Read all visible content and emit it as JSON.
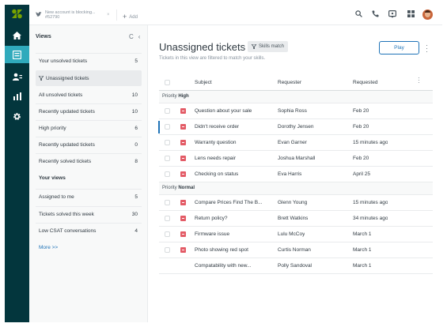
{
  "topbar": {
    "tab": {
      "title": "New account is blocking...",
      "ticket_id": "#52790",
      "close": "×"
    },
    "add_label": "Add"
  },
  "views_panel": {
    "heading": "Views",
    "refresh": "C",
    "collapse": "‹",
    "items": [
      {
        "label": "Your unsolved tickets",
        "count": "5"
      },
      {
        "label": "Unassigned tickets",
        "count": ""
      },
      {
        "label": "All unsolved tickets",
        "count": "10"
      },
      {
        "label": "Recently updated tickets",
        "count": "10"
      },
      {
        "label": "High priority",
        "count": "6"
      },
      {
        "label": "Recently updated tickets",
        "count": "0"
      },
      {
        "label": "Recently solved tickets",
        "count": "8"
      }
    ],
    "your_views_heading": "Your views",
    "your_views": [
      {
        "label": "Assigned to me",
        "count": "5"
      },
      {
        "label": "Tickets solved this week",
        "count": "30"
      },
      {
        "label": "Low CSAT conversations",
        "count": "4"
      }
    ],
    "more_label": "More >>"
  },
  "main": {
    "title": "Unassigned tickets",
    "skills_badge": "Skills match",
    "subtitle": "Tickets in this view are filtered to match your skills.",
    "play_label": "Play",
    "columns": [
      "Subject",
      "Requester",
      "Requested"
    ],
    "groups": [
      {
        "prefix": "Priority",
        "name": "High",
        "rows": [
          {
            "subject": "Question about your sale",
            "requester": "Sophia Ross",
            "requested": "Feb 20"
          },
          {
            "subject": "Didn't receive order",
            "requester": "Dorothy Jensen",
            "requested": "Feb 20"
          },
          {
            "subject": "Warranty question",
            "requester": "Evan Garner",
            "requested": "15 minutes ago"
          },
          {
            "subject": "Lens needs repair",
            "requester": "Joshua Marshall",
            "requested": "Feb 20"
          },
          {
            "subject": "Checking on status",
            "requester": "Eva Harris",
            "requested": "April 25"
          }
        ]
      },
      {
        "prefix": "Priority",
        "name": "Normal",
        "rows": [
          {
            "subject": "Compare Prices Find The B...",
            "requester": "Glenn Young",
            "requested": "15 minutes ago"
          },
          {
            "subject": "Return policy?",
            "requester": "Brett Watkins",
            "requested": "34 minutes ago"
          },
          {
            "subject": "Firmware issue",
            "requester": "Lulu McCoy",
            "requested": "March 1"
          },
          {
            "subject": "Photo showing red spot",
            "requester": "Curtis Norman",
            "requested": "March 1"
          },
          {
            "subject": "Compatability with new...",
            "requester": "Polly Sandoval",
            "requested": "March 1"
          }
        ]
      }
    ]
  },
  "colors": {
    "rail": "#03363d",
    "accent": "#1f73b7",
    "active_nav": "#30aabc",
    "priority_badge": "#e35b66"
  }
}
